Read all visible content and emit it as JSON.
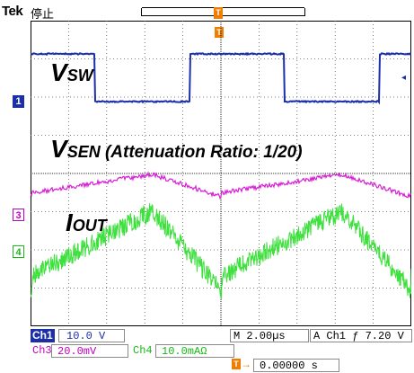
{
  "header": {
    "brand": "Tek",
    "run_status": "停止",
    "trigger_marker_glyph": "T"
  },
  "labels": {
    "vsw_main": "V",
    "vsw_sub": "SW",
    "vsen_main": "V",
    "vsen_sub": "SEN",
    "vsen_note": " (Attenuation Ratio: 1/20)",
    "iout_main": "I",
    "iout_sub": "OUT"
  },
  "channel_markers": {
    "ch1": "1",
    "ch3": "3",
    "ch4": "4"
  },
  "readout": {
    "ch1_tag": "Ch1",
    "ch1_scale": "10.0 V",
    "ch3_tag": "Ch3",
    "ch3_scale": "20.0mV",
    "ch4_tag": "Ch4",
    "ch4_scale": "10.0mAΩ",
    "timebase": "M 2.00µs",
    "trigger": "A  Ch1  ƒ   7.20 V",
    "delay": "0.00000 s"
  },
  "colors": {
    "ch1": "#1b2fa8",
    "ch3": "#d620d6",
    "ch4": "#3ee03e",
    "trigger": "#f07c00",
    "graticule": "#000000"
  },
  "icons": {
    "trigger_position": "trigger-position-icon",
    "trigger_arrow": "right-arrow-icon",
    "ch1_offscreen": "left-arrow-icon"
  }
}
